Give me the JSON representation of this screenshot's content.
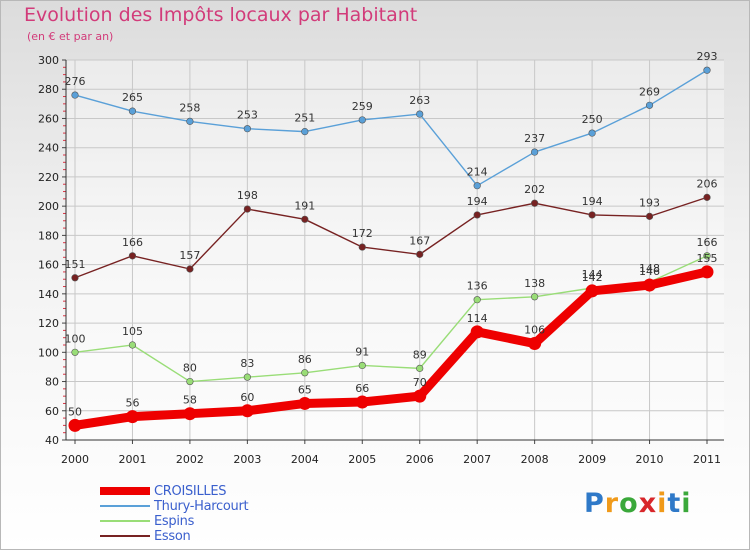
{
  "brand": {
    "logo_text": "Proxiti",
    "letter_colors": [
      "#2f79c8",
      "#f09a1a",
      "#3aa83a",
      "#d8262a",
      "#f09a1a",
      "#2f79c8",
      "#3aa83a"
    ]
  },
  "chart_data": {
    "type": "line",
    "title": "Evolution des Impôts locaux par Habitant",
    "subtitle": "(en € et par an)",
    "xlabel": "",
    "ylabel": "",
    "categories": [
      "2000",
      "2001",
      "2002",
      "2003",
      "2004",
      "2005",
      "2006",
      "2007",
      "2008",
      "2009",
      "2010",
      "2011"
    ],
    "ylim": [
      40,
      300
    ],
    "yticks": [
      40,
      60,
      80,
      100,
      120,
      140,
      160,
      180,
      200,
      220,
      240,
      260,
      280,
      300
    ],
    "grid": true,
    "legend_position": "bottom-left",
    "series": [
      {
        "name": "CROISILLES",
        "color": "#ee0000",
        "values": [
          50,
          56,
          58,
          60,
          65,
          66,
          70,
          114,
          106,
          142,
          146,
          155
        ]
      },
      {
        "name": "Thury-Harcourt",
        "color": "#5aa0d8",
        "values": [
          276,
          265,
          258,
          253,
          251,
          259,
          263,
          214,
          237,
          250,
          269,
          293
        ]
      },
      {
        "name": "Espins",
        "color": "#99dd77",
        "values": [
          100,
          105,
          80,
          83,
          86,
          91,
          89,
          136,
          138,
          144,
          148,
          166
        ]
      },
      {
        "name": "Esson",
        "color": "#772222",
        "values": [
          151,
          166,
          157,
          198,
          191,
          172,
          167,
          194,
          202,
          194,
          193,
          206
        ]
      }
    ]
  }
}
